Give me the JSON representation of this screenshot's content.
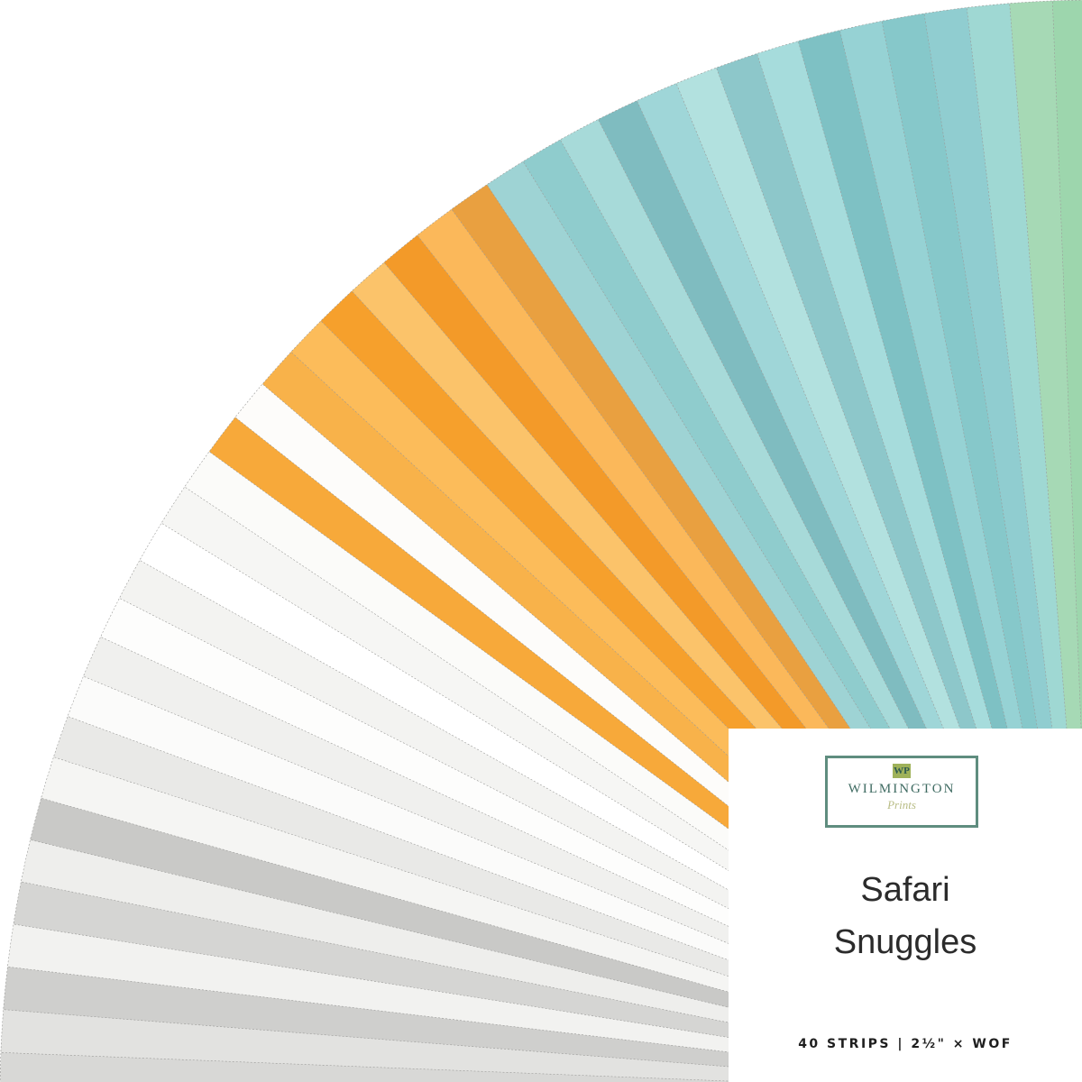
{
  "brand": {
    "name": "WILMINGTON",
    "sub": "Prints",
    "mark": "WP"
  },
  "product": {
    "title_line1": "Safari",
    "title_line2": "Snuggles",
    "spec": "40 STRIPS | 2½\" × WOF"
  },
  "strip_colors": [
    "#d8d8d6",
    "#e2e2e0",
    "#cfcfcd",
    "#f2f2f0",
    "#d5d5d3",
    "#eeeeec",
    "#c9c9c7",
    "#f5f5f3",
    "#e9e9e7",
    "#fbfbfa",
    "#f0f0ee",
    "#fdfdfc",
    "#f3f3f1",
    "#ffffff",
    "#f6f6f4",
    "#fbfbf9",
    "#f7a93a",
    "#fdfcfa",
    "#f8b24a",
    "#fcbc5a",
    "#f6a02c",
    "#fbc36a",
    "#f39a29",
    "#fbb85a",
    "#e9a040",
    "#9ed3d4",
    "#8fcccd",
    "#a7dad9",
    "#7fbcc0",
    "#9fd6d8",
    "#b2e1df",
    "#8dc7ca",
    "#a6dcdc",
    "#7ec1c4",
    "#96d2d4",
    "#86c8ca",
    "#90cdd0",
    "#9fd8d3",
    "#a6d9b5",
    "#9dd6ad"
  ]
}
